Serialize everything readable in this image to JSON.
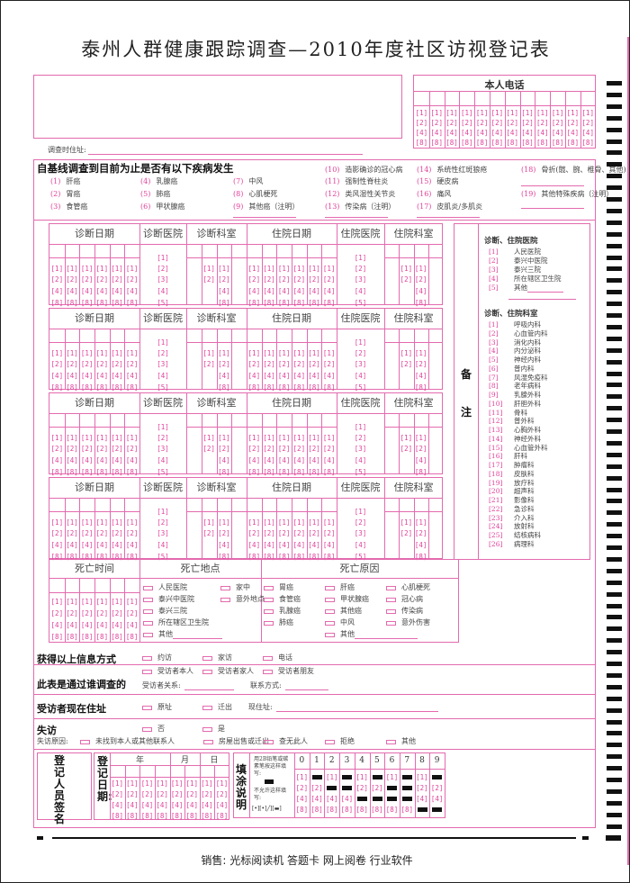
{
  "title": "泰州人群健康跟踪调查—2010年度社区访视登记表",
  "phone": {
    "label": "本人电话"
  },
  "bubbles": {
    "binary": [
      "[1]",
      "[2]",
      "[4]",
      "[8]"
    ],
    "five": [
      "[1]",
      "[2]",
      "[3]",
      "[4]",
      "[5]"
    ],
    "two": [
      "[1]",
      "[2]"
    ]
  },
  "address_label": "调查时住址:",
  "diseases": {
    "title": "自基线调查到目前为止是否有以下疾病发生",
    "items": [
      {
        "code": "(1)",
        "label": "肝癌"
      },
      {
        "code": "(2)",
        "label": "胃癌"
      },
      {
        "code": "(3)",
        "label": "食管癌"
      },
      {
        "code": "(4)",
        "label": "乳腺癌"
      },
      {
        "code": "(5)",
        "label": "肺癌"
      },
      {
        "code": "(6)",
        "label": "甲状腺癌"
      },
      {
        "code": "(7)",
        "label": "中风"
      },
      {
        "code": "(8)",
        "label": "心肌梗死"
      },
      {
        "code": "(9)",
        "label": "其他癌（注明）"
      },
      {
        "code": "(10)",
        "label": "造影确诊的冠心病"
      },
      {
        "code": "(11)",
        "label": "强制性脊柱炎"
      },
      {
        "code": "(12)",
        "label": "类风湿性关节炎"
      },
      {
        "code": "(13)",
        "label": "传染病（注明）"
      },
      {
        "code": "(14)",
        "label": "系统性红斑狼疮"
      },
      {
        "code": "(15)",
        "label": "硬皮病"
      },
      {
        "code": "(16)",
        "label": "痛风"
      },
      {
        "code": "(17)",
        "label": "皮肌炎/多肌炎"
      },
      {
        "code": "(18)",
        "label": "骨折(髋、腕、椎骨、其他)"
      },
      {
        "code": "(19)",
        "label": "其他特殊疾病（注明）"
      }
    ]
  },
  "diagnosis_table": {
    "headers": [
      "诊断日期",
      "诊断医院",
      "诊断科室",
      "住院日期",
      "住院医院",
      "住院科室"
    ]
  },
  "remarks": {
    "label_1": "备",
    "label_2": "注",
    "hospital_title": "诊断、住院医院",
    "hospitals": [
      {
        "code": "[1]",
        "label": "人民医院"
      },
      {
        "code": "[2]",
        "label": "泰兴中医院"
      },
      {
        "code": "[3]",
        "label": "泰兴三院"
      },
      {
        "code": "[4]",
        "label": "所在辖区卫生院"
      },
      {
        "code": "[5]",
        "label": "其他"
      }
    ],
    "dept_title": "诊断、住院科室",
    "departments": [
      {
        "code": "[1]",
        "label": "呼吸内科"
      },
      {
        "code": "[2]",
        "label": "心血管内科"
      },
      {
        "code": "[3]",
        "label": "消化内科"
      },
      {
        "code": "[4]",
        "label": "内分泌科"
      },
      {
        "code": "[5]",
        "label": "神经内科"
      },
      {
        "code": "[6]",
        "label": "普内科"
      },
      {
        "code": "[7]",
        "label": "风湿免疫科"
      },
      {
        "code": "[8]",
        "label": "老年病科"
      },
      {
        "code": "[9]",
        "label": "乳腺外科"
      },
      {
        "code": "[10]",
        "label": "肝胆外科"
      },
      {
        "code": "[11]",
        "label": "骨科"
      },
      {
        "code": "[12]",
        "label": "普外科"
      },
      {
        "code": "[13]",
        "label": "心胸外科"
      },
      {
        "code": "[14]",
        "label": "神经外科"
      },
      {
        "code": "[15]",
        "label": "心血管外科"
      },
      {
        "code": "[16]",
        "label": "肝科"
      },
      {
        "code": "[17]",
        "label": "肿瘤科"
      },
      {
        "code": "[18]",
        "label": "皮肤科"
      },
      {
        "code": "[19]",
        "label": "放疗科"
      },
      {
        "code": "[20]",
        "label": "超声科"
      },
      {
        "code": "[21]",
        "label": "影像科"
      },
      {
        "code": "[22]",
        "label": "急诊科"
      },
      {
        "code": "[23]",
        "label": "介入科"
      },
      {
        "code": "[24]",
        "label": "放射科"
      },
      {
        "code": "[25]",
        "label": "结核病科"
      },
      {
        "code": "[26]",
        "label": "病理科"
      }
    ]
  },
  "death": {
    "headers": [
      "死亡时间",
      "死亡地点",
      "死亡原因"
    ],
    "places": [
      "人民医院",
      "家中",
      "泰兴中医院",
      "意外地点",
      "泰兴三院",
      "所在辖区卫生院",
      "其他"
    ],
    "causes": [
      "胃癌",
      "肝癌",
      "心肌梗死",
      "食管癌",
      "甲状腺癌",
      "冠心病",
      "乳腺癌",
      "其他癌",
      "传染病",
      "肺癌",
      "中风",
      "意外伤害",
      "其他"
    ]
  },
  "info": {
    "method_label": "获得以上信息方式",
    "methods": [
      "约访",
      "家访",
      "电话"
    ],
    "who_label": "此表是通过谁调查的",
    "who_options": [
      "受访者本人",
      "受访者家人",
      "受访者朋友"
    ],
    "relation_label": "受访者关系:",
    "contact_label": "联系方式:",
    "residence_label": "受访者现在住址",
    "residence_options": [
      "原址",
      "迁出"
    ],
    "current_address_label": "现住址:",
    "lost_label": "失访",
    "lost_options": [
      "否",
      "是"
    ],
    "lost_reason_label": "失访原因:",
    "lost_reasons": [
      "未找到本人或其他联系人",
      "房屋出售或迁出",
      "查无此人",
      "拒绝",
      "其他"
    ]
  },
  "registration": {
    "signer_label": "登记人员签名",
    "date_label": "登记日期:",
    "year": "年",
    "month": "月",
    "day": "日"
  },
  "instructions": {
    "title": "填涂说明",
    "correct_text": "用2B铅笔或碳素笔按这样填写:",
    "wrong_text": "不允许这样填写:",
    "wrong_examples": "[•][•]╱][▬]",
    "digits": [
      "0",
      "1",
      "2",
      "3",
      "4",
      "5",
      "6",
      "7",
      "8",
      "9"
    ]
  },
  "footer": "销售: 光标阅读机 答题卡 网上阅卷 行业软件",
  "colors": {
    "form_pink": "#e36aae",
    "bubble_pink": "#e0409a",
    "mark_black": "#111111"
  }
}
